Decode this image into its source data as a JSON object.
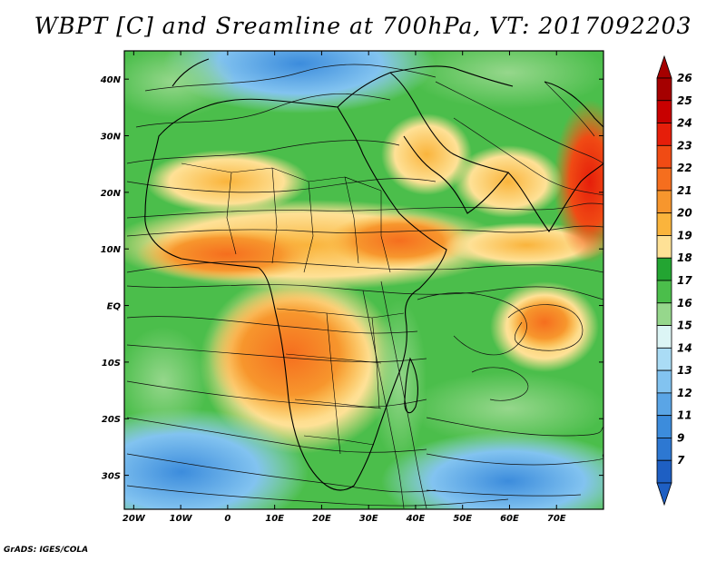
{
  "title": "WBPT [C] and Sreamline at 700hPa, VT: 2017092203",
  "credit": "GrADS: IGES/COLA",
  "map": {
    "lon_range": [
      -22,
      80
    ],
    "lat_range": [
      -36,
      45
    ],
    "lon_ticks": [
      {
        "value": -20,
        "label": "20W"
      },
      {
        "value": -10,
        "label": "10W"
      },
      {
        "value": 0,
        "label": "0"
      },
      {
        "value": 10,
        "label": "10E"
      },
      {
        "value": 20,
        "label": "20E"
      },
      {
        "value": 30,
        "label": "30E"
      },
      {
        "value": 40,
        "label": "40E"
      },
      {
        "value": 50,
        "label": "50E"
      },
      {
        "value": 60,
        "label": "60E"
      },
      {
        "value": 70,
        "label": "70E"
      }
    ],
    "lat_ticks": [
      {
        "value": 40,
        "label": "40N"
      },
      {
        "value": 30,
        "label": "30N"
      },
      {
        "value": 20,
        "label": "20N"
      },
      {
        "value": 10,
        "label": "10N"
      },
      {
        "value": 0,
        "label": "EQ"
      },
      {
        "value": -10,
        "label": "10S"
      },
      {
        "value": -20,
        "label": "20S"
      },
      {
        "value": -30,
        "label": "30S"
      }
    ]
  },
  "colorbar": {
    "levels": [
      {
        "label": "26",
        "color": "#a50000"
      },
      {
        "label": "25",
        "color": "#c80000"
      },
      {
        "label": "24",
        "color": "#e61e0a"
      },
      {
        "label": "23",
        "color": "#f04b14"
      },
      {
        "label": "22",
        "color": "#f56e1e"
      },
      {
        "label": "21",
        "color": "#f7962d"
      },
      {
        "label": "20",
        "color": "#fab43c"
      },
      {
        "label": "19",
        "color": "#fee196"
      },
      {
        "label": "18",
        "color": "#23a532"
      },
      {
        "label": "17",
        "color": "#4bbe4b"
      },
      {
        "label": "16",
        "color": "#96d78c"
      },
      {
        "label": "15",
        "color": "#dcf5f5"
      },
      {
        "label": "14",
        "color": "#aadcf5"
      },
      {
        "label": "13",
        "color": "#82c3f0"
      },
      {
        "label": "12",
        "color": "#5aa5e6"
      },
      {
        "label": "11",
        "color": "#3c8cdc"
      },
      {
        "label": "9",
        "color": "#2d78d2"
      },
      {
        "label": "7",
        "color": "#1e5fc3"
      }
    ],
    "top_color": "#a50000",
    "bottom_color": "#1e5fc3"
  }
}
